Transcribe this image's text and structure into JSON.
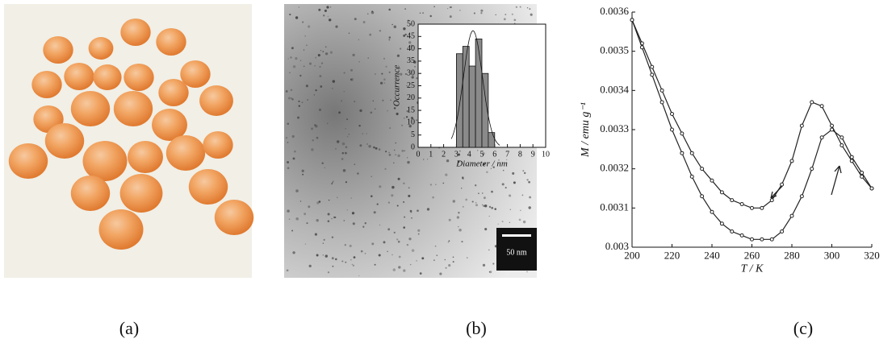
{
  "panels": [
    "(a)",
    "(b)",
    "(c)"
  ],
  "scale_bar": "50 nm",
  "chart_data": [
    {
      "type": "histogram",
      "xlabel": "Diameter / nm",
      "ylabel": "Occurrence",
      "bins": [
        3,
        3.5,
        4,
        4.5,
        5,
        5.5,
        6
      ],
      "values": [
        38,
        41,
        33,
        44,
        30,
        6
      ],
      "color": "#8a8a8a",
      "xlim": [
        0,
        10
      ],
      "xticks": [
        0,
        1,
        2,
        3,
        4,
        5,
        6,
        7,
        8,
        9,
        10
      ],
      "ylim": [
        0,
        50
      ],
      "yticks": [
        0,
        5,
        10,
        15,
        20,
        25,
        30,
        35,
        40,
        45,
        50
      ]
    },
    {
      "type": "line",
      "xlabel": "T / K",
      "ylabel": "M / emu g⁻¹",
      "x": [
        200,
        205,
        210,
        215,
        220,
        225,
        230,
        235,
        240,
        245,
        250,
        255,
        260,
        265,
        270,
        275,
        280,
        285,
        290,
        295,
        300,
        305,
        310,
        315,
        320
      ],
      "series": [
        {
          "color": "#222222",
          "values": [
            0.00358,
            0.00352,
            0.00346,
            0.0034,
            0.00334,
            0.00329,
            0.00324,
            0.0032,
            0.00317,
            0.00314,
            0.00312,
            0.00311,
            0.0031,
            0.0031,
            0.00312,
            0.00316,
            0.00322,
            0.00331,
            0.00337,
            0.00336,
            0.00331,
            0.00326,
            0.00322,
            0.00318,
            0.00315
          ]
        },
        {
          "color": "#222222",
          "values": [
            0.00358,
            0.00351,
            0.00344,
            0.00337,
            0.0033,
            0.00324,
            0.00318,
            0.00313,
            0.00309,
            0.00306,
            0.00304,
            0.00303,
            0.00302,
            0.00302,
            0.00302,
            0.00304,
            0.00308,
            0.00313,
            0.0032,
            0.00328,
            0.0033,
            0.00328,
            0.00323,
            0.00319,
            0.00315
          ]
        }
      ],
      "xlim": [
        200,
        320
      ],
      "xticks": [
        200,
        220,
        240,
        260,
        280,
        300,
        320
      ],
      "ylim": [
        0.003,
        0.0036
      ],
      "yticks": [
        0.003,
        0.0031,
        0.0032,
        0.0033,
        0.0034,
        0.0035,
        0.0036
      ]
    }
  ]
}
